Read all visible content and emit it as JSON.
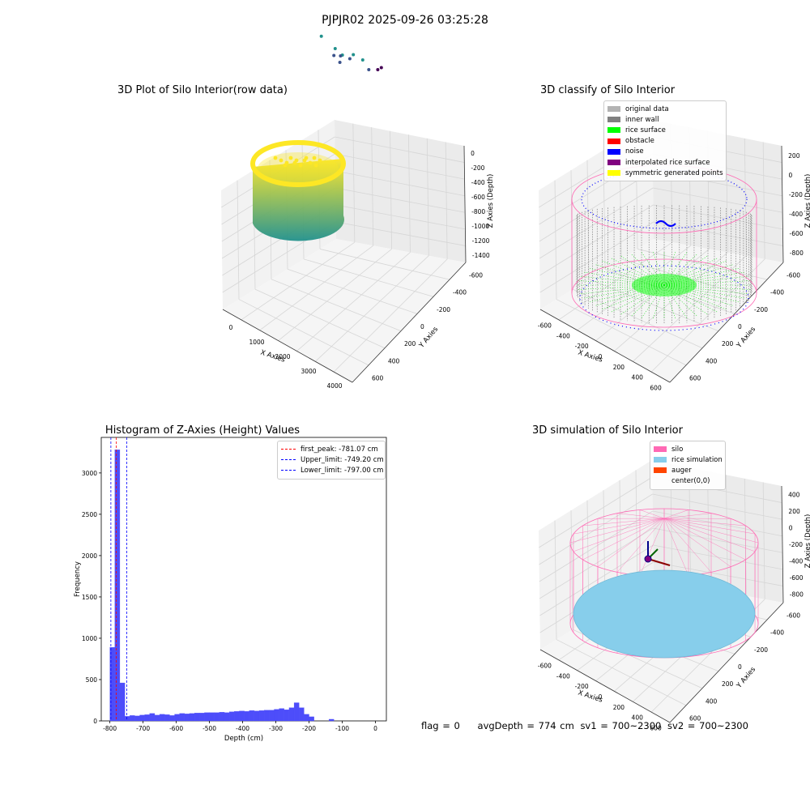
{
  "figure": {
    "suptitle": "PJPJR02 2025-09-26 03:25:28",
    "status": {
      "flag": "flag = 0",
      "avg_depth": "avgDepth = 774 cm",
      "sv1": "sv1 = 700~2300",
      "sv2": "sv2 = 700~2300"
    }
  },
  "chart_data": [
    {
      "type": "scatter",
      "projection": "3d",
      "title": "3D Plot of Silo Interior(row data)",
      "xlabel": "X Axies",
      "ylabel": "Y Axies",
      "zlabel": "Z Axies (Depth)",
      "x_ticks": [
        "0",
        "1000",
        "2000",
        "3000",
        "4000"
      ],
      "y_ticks": [
        "-600",
        "-400",
        "-200",
        "0",
        "200",
        "400",
        "600"
      ],
      "z_ticks": [
        "0",
        "-200",
        "-400",
        "-600",
        "-800",
        "-1000",
        "-1200",
        "-1400"
      ],
      "colormap": "viridis",
      "colors": {
        "low": "#440154",
        "mid": "#21918c",
        "high": "#fde725"
      },
      "series": [
        {
          "values": [
            [
              2100,
              450,
              -350
            ],
            [
              2400,
              500,
              -520
            ],
            [
              2600,
              450,
              -660
            ],
            [
              2900,
              380,
              -700
            ],
            [
              3100,
              420,
              -760
            ],
            [
              2700,
              200,
              -840
            ],
            [
              2600,
              100,
              -900
            ],
            [
              2950,
              150,
              -920
            ],
            [
              2800,
              0,
              -1080
            ],
            [
              3400,
              150,
              -1100
            ],
            [
              3700,
              0,
              -1200
            ],
            [
              3900,
              -200,
              -1300
            ]
          ]
        }
      ]
    },
    {
      "type": "scatter",
      "projection": "3d",
      "title": "3D classify of Silo Interior",
      "xlabel": "X Axies",
      "ylabel": "Y Axies",
      "zlabel": "Z Axies (Depth)",
      "x_ticks": [
        "-600",
        "-400",
        "-200",
        "0",
        "200",
        "400",
        "600"
      ],
      "y_ticks": [
        "-600",
        "-400",
        "-200",
        "0",
        "200",
        "400",
        "600"
      ],
      "z_ticks": [
        "200",
        "0",
        "-200",
        "-400",
        "-600",
        "-800"
      ],
      "legend": [
        {
          "label": "original data",
          "color": "#b3b3b3"
        },
        {
          "label": "inner wall",
          "color": "#808080"
        },
        {
          "label": "rice surface",
          "color": "#00ff00"
        },
        {
          "label": "obstacle",
          "color": "#ff0000"
        },
        {
          "label": "noise",
          "color": "#0000ff"
        },
        {
          "label": "interpolated rice surface",
          "color": "#800080"
        },
        {
          "label": "symmetric generated points",
          "color": "#ffff00"
        }
      ],
      "silo_radius": 680,
      "silo_z_range": [
        -800,
        200
      ],
      "wall_color": "#ff69b4"
    },
    {
      "type": "bar",
      "title": "Histogram of Z-Axies (Height) Values",
      "xlabel": "Depth (cm)",
      "ylabel": "Frequency",
      "x_ticks": [
        -800,
        -700,
        -600,
        -500,
        -400,
        -300,
        -200,
        -100,
        0
      ],
      "y_ticks": [
        0,
        500,
        1000,
        1500,
        2000,
        2500,
        3000
      ],
      "xlim": [
        -826,
        33
      ],
      "ylim": [
        0,
        3430
      ],
      "bin_start": -800,
      "bin_width": 15,
      "bar_color": "#4d4dfa",
      "values": [
        890,
        3280,
        460,
        55,
        65,
        60,
        70,
        75,
        90,
        70,
        80,
        75,
        65,
        80,
        90,
        85,
        90,
        95,
        95,
        100,
        100,
        100,
        105,
        100,
        110,
        115,
        120,
        115,
        125,
        120,
        125,
        130,
        130,
        140,
        150,
        135,
        160,
        220,
        160,
        80,
        50,
        0,
        0,
        0,
        20
      ],
      "vlines": [
        {
          "label": "first_peak: -781.07 cm",
          "x": -781.07,
          "color": "#ff0000"
        },
        {
          "label": "Upper_limit: -749.20 cm",
          "x": -749.2,
          "color": "#0000ff"
        },
        {
          "label": "Lower_limit: -797.00 cm",
          "x": -797.0,
          "color": "#0000ff"
        }
      ]
    },
    {
      "type": "scatter",
      "projection": "3d",
      "title": "3D simulation of Silo Interior",
      "xlabel": "X Axies",
      "ylabel": "Y Axies",
      "zlabel": "Z Axies (Depth)",
      "x_ticks": [
        "-600",
        "-400",
        "-200",
        "0",
        "200",
        "400",
        "600"
      ],
      "y_ticks": [
        "-600",
        "-400",
        "-200",
        "0",
        "200",
        "400",
        "600"
      ],
      "z_ticks": [
        "400",
        "200",
        "0",
        "-200",
        "-400",
        "-600",
        "-800"
      ],
      "legend": [
        {
          "label": "silo",
          "color": "#ff69b4"
        },
        {
          "label": "rice simulation",
          "color": "#87ceeb"
        },
        {
          "label": "auger",
          "color": "#ff4500"
        },
        {
          "label": "center(0,0)",
          "color": ""
        }
      ]
    }
  ]
}
